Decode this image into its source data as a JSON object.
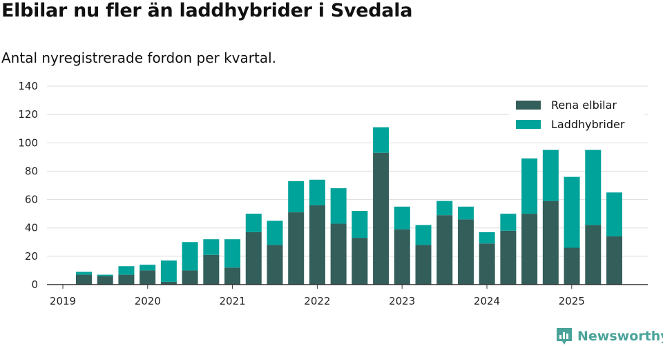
{
  "title": "Elbilar nu fler än laddhybrider i Svedala",
  "subtitle": "Antal nyregistrerade fordon per kvartal.",
  "brand": "Newsworthy",
  "colors": {
    "elbilar": "#335e5a",
    "laddhybrider": "#00a39a",
    "grid": "#dddddd",
    "axis": "#333333"
  },
  "chart_data": {
    "type": "bar",
    "stacked": true,
    "title": "Elbilar nu fler än laddhybrider i Svedala",
    "subtitle": "Antal nyregistrerade fordon per kvartal.",
    "xlabel": "",
    "ylabel": "",
    "ylim": [
      0,
      140
    ],
    "yticks": [
      0,
      20,
      40,
      60,
      80,
      100,
      120,
      140
    ],
    "xtick_labels": [
      "2019",
      "2020",
      "2021",
      "2022",
      "2023",
      "2024",
      "2025"
    ],
    "legend_position": "top-right",
    "categories": [
      "2019 Q2",
      "2019 Q3",
      "2019 Q4",
      "2020 Q1",
      "2020 Q2",
      "2020 Q3",
      "2020 Q4",
      "2021 Q1",
      "2021 Q2",
      "2021 Q3",
      "2021 Q4",
      "2022 Q1",
      "2022 Q2",
      "2022 Q3",
      "2022 Q4",
      "2023 Q1",
      "2023 Q2",
      "2023 Q3",
      "2023 Q4",
      "2024 Q1",
      "2024 Q2",
      "2024 Q3",
      "2024 Q4",
      "2025 Q1",
      "2025 Q2",
      "2025 Q3"
    ],
    "series": [
      {
        "name": "Rena elbilar",
        "values": [
          7,
          6,
          7,
          10,
          2,
          10,
          21,
          12,
          37,
          28,
          51,
          56,
          43,
          33,
          93,
          39,
          28,
          49,
          46,
          29,
          38,
          50,
          59,
          26,
          42,
          34
        ]
      },
      {
        "name": "Laddhybrider",
        "values": [
          2,
          1,
          6,
          4,
          15,
          20,
          11,
          20,
          13,
          17,
          22,
          18,
          25,
          19,
          18,
          16,
          14,
          10,
          9,
          8,
          12,
          39,
          36,
          50,
          53,
          31
        ]
      }
    ]
  }
}
